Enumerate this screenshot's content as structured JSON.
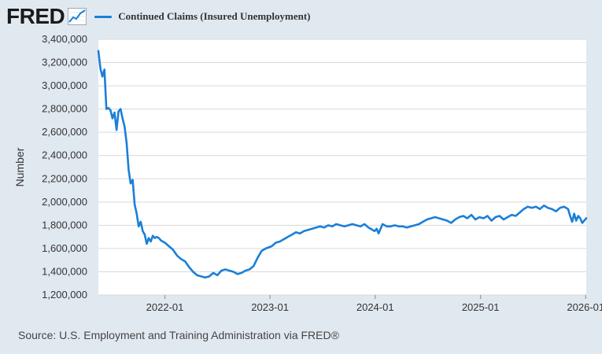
{
  "brand": {
    "name": "FRED"
  },
  "icons": {
    "logo_chart": "line-chart-icon"
  },
  "colors": {
    "series": "#1a7fd8",
    "background": "#e1e9f0",
    "plot_bg": "#ffffff",
    "grid": "#d9d9d9"
  },
  "source_text": "Source: U.S. Employment and Training Administration via FRED®",
  "chart_data": {
    "type": "line",
    "xlabel": "",
    "ylabel": "Number",
    "ylim": [
      1200000,
      3400000
    ],
    "yticks": [
      1200000,
      1400000,
      1600000,
      1800000,
      2000000,
      2200000,
      2400000,
      2600000,
      2800000,
      3000000,
      3200000,
      3400000
    ],
    "ytick_labels": [
      "1,200,000",
      "1,400,000",
      "1,600,000",
      "1,800,000",
      "2,000,000",
      "2,200,000",
      "2,400,000",
      "2,600,000",
      "2,800,000",
      "3,000,000",
      "3,200,000",
      "3,400,000"
    ],
    "xlim": [
      "2021-05-15",
      "2026-01-03"
    ],
    "xticks": [
      "2022-01-01",
      "2023-01-01",
      "2024-01-01",
      "2025-01-01",
      "2026-01-01"
    ],
    "xtick_labels": [
      "2022-01",
      "2023-01",
      "2024-01",
      "2025-01",
      "2026-01"
    ],
    "grid": true,
    "legend": "top-left",
    "series": [
      {
        "name": "Continued Claims (Insured Unemployment)",
        "color": "#1a7fd8",
        "points": [
          [
            "2021-05-15",
            3300000
          ],
          [
            "2021-05-22",
            3150000
          ],
          [
            "2021-05-29",
            3080000
          ],
          [
            "2021-06-05",
            3140000
          ],
          [
            "2021-06-12",
            2800000
          ],
          [
            "2021-06-19",
            2810000
          ],
          [
            "2021-06-26",
            2790000
          ],
          [
            "2021-07-03",
            2720000
          ],
          [
            "2021-07-10",
            2770000
          ],
          [
            "2021-07-17",
            2620000
          ],
          [
            "2021-07-24",
            2780000
          ],
          [
            "2021-07-31",
            2800000
          ],
          [
            "2021-08-07",
            2720000
          ],
          [
            "2021-08-14",
            2650000
          ],
          [
            "2021-08-21",
            2510000
          ],
          [
            "2021-08-28",
            2280000
          ],
          [
            "2021-09-04",
            2160000
          ],
          [
            "2021-09-11",
            2190000
          ],
          [
            "2021-09-18",
            1980000
          ],
          [
            "2021-09-25",
            1900000
          ],
          [
            "2021-10-02",
            1790000
          ],
          [
            "2021-10-09",
            1830000
          ],
          [
            "2021-10-16",
            1750000
          ],
          [
            "2021-10-23",
            1720000
          ],
          [
            "2021-10-30",
            1640000
          ],
          [
            "2021-11-06",
            1690000
          ],
          [
            "2021-11-13",
            1660000
          ],
          [
            "2021-11-20",
            1710000
          ],
          [
            "2021-11-27",
            1690000
          ],
          [
            "2021-12-04",
            1700000
          ],
          [
            "2021-12-11",
            1690000
          ],
          [
            "2021-12-18",
            1670000
          ],
          [
            "2022-01-01",
            1650000
          ],
          [
            "2022-01-15",
            1620000
          ],
          [
            "2022-01-29",
            1590000
          ],
          [
            "2022-02-12",
            1540000
          ],
          [
            "2022-02-26",
            1510000
          ],
          [
            "2022-03-12",
            1490000
          ],
          [
            "2022-03-26",
            1440000
          ],
          [
            "2022-04-09",
            1400000
          ],
          [
            "2022-04-23",
            1370000
          ],
          [
            "2022-05-07",
            1360000
          ],
          [
            "2022-05-21",
            1350000
          ],
          [
            "2022-06-04",
            1360000
          ],
          [
            "2022-06-18",
            1390000
          ],
          [
            "2022-07-02",
            1370000
          ],
          [
            "2022-07-16",
            1410000
          ],
          [
            "2022-07-30",
            1420000
          ],
          [
            "2022-08-13",
            1410000
          ],
          [
            "2022-08-27",
            1400000
          ],
          [
            "2022-09-10",
            1380000
          ],
          [
            "2022-09-24",
            1390000
          ],
          [
            "2022-10-08",
            1410000
          ],
          [
            "2022-10-22",
            1420000
          ],
          [
            "2022-11-05",
            1450000
          ],
          [
            "2022-11-19",
            1520000
          ],
          [
            "2022-12-03",
            1580000
          ],
          [
            "2022-12-17",
            1600000
          ],
          [
            "2023-01-07",
            1620000
          ],
          [
            "2023-01-21",
            1650000
          ],
          [
            "2023-02-04",
            1660000
          ],
          [
            "2023-02-18",
            1680000
          ],
          [
            "2023-03-04",
            1700000
          ],
          [
            "2023-03-18",
            1720000
          ],
          [
            "2023-04-01",
            1740000
          ],
          [
            "2023-04-15",
            1730000
          ],
          [
            "2023-04-29",
            1750000
          ],
          [
            "2023-05-13",
            1760000
          ],
          [
            "2023-05-27",
            1770000
          ],
          [
            "2023-06-10",
            1780000
          ],
          [
            "2023-06-24",
            1790000
          ],
          [
            "2023-07-08",
            1780000
          ],
          [
            "2023-07-22",
            1800000
          ],
          [
            "2023-08-05",
            1790000
          ],
          [
            "2023-08-19",
            1810000
          ],
          [
            "2023-09-02",
            1800000
          ],
          [
            "2023-09-16",
            1790000
          ],
          [
            "2023-09-30",
            1800000
          ],
          [
            "2023-10-14",
            1810000
          ],
          [
            "2023-10-28",
            1800000
          ],
          [
            "2023-11-11",
            1790000
          ],
          [
            "2023-11-25",
            1810000
          ],
          [
            "2023-12-09",
            1780000
          ],
          [
            "2023-12-23",
            1760000
          ],
          [
            "2023-12-30",
            1750000
          ],
          [
            "2024-01-06",
            1770000
          ],
          [
            "2024-01-13",
            1730000
          ],
          [
            "2024-01-27",
            1810000
          ],
          [
            "2024-02-10",
            1790000
          ],
          [
            "2024-02-24",
            1790000
          ],
          [
            "2024-03-09",
            1800000
          ],
          [
            "2024-03-23",
            1790000
          ],
          [
            "2024-04-06",
            1790000
          ],
          [
            "2024-04-20",
            1780000
          ],
          [
            "2024-05-04",
            1790000
          ],
          [
            "2024-05-18",
            1800000
          ],
          [
            "2024-06-01",
            1810000
          ],
          [
            "2024-06-15",
            1830000
          ],
          [
            "2024-06-29",
            1850000
          ],
          [
            "2024-07-13",
            1860000
          ],
          [
            "2024-07-27",
            1870000
          ],
          [
            "2024-08-10",
            1860000
          ],
          [
            "2024-08-24",
            1850000
          ],
          [
            "2024-09-07",
            1840000
          ],
          [
            "2024-09-21",
            1820000
          ],
          [
            "2024-10-05",
            1850000
          ],
          [
            "2024-10-19",
            1870000
          ],
          [
            "2024-11-02",
            1880000
          ],
          [
            "2024-11-16",
            1860000
          ],
          [
            "2024-11-30",
            1890000
          ],
          [
            "2024-12-14",
            1850000
          ],
          [
            "2024-12-28",
            1870000
          ],
          [
            "2025-01-11",
            1860000
          ],
          [
            "2025-01-25",
            1880000
          ],
          [
            "2025-02-08",
            1840000
          ],
          [
            "2025-02-22",
            1870000
          ],
          [
            "2025-03-08",
            1880000
          ],
          [
            "2025-03-22",
            1850000
          ],
          [
            "2025-04-05",
            1870000
          ],
          [
            "2025-04-19",
            1890000
          ],
          [
            "2025-05-03",
            1880000
          ],
          [
            "2025-05-17",
            1910000
          ],
          [
            "2025-05-31",
            1940000
          ],
          [
            "2025-06-14",
            1960000
          ],
          [
            "2025-06-28",
            1950000
          ],
          [
            "2025-07-12",
            1960000
          ],
          [
            "2025-07-26",
            1940000
          ],
          [
            "2025-08-09",
            1970000
          ],
          [
            "2025-08-23",
            1950000
          ],
          [
            "2025-09-06",
            1940000
          ],
          [
            "2025-09-20",
            1920000
          ],
          [
            "2025-10-04",
            1950000
          ],
          [
            "2025-10-18",
            1960000
          ],
          [
            "2025-11-01",
            1940000
          ],
          [
            "2025-11-08",
            1880000
          ],
          [
            "2025-11-15",
            1830000
          ],
          [
            "2025-11-22",
            1900000
          ],
          [
            "2025-11-29",
            1840000
          ],
          [
            "2025-12-06",
            1880000
          ],
          [
            "2025-12-13",
            1860000
          ],
          [
            "2025-12-20",
            1820000
          ],
          [
            "2025-12-27",
            1840000
          ],
          [
            "2026-01-03",
            1860000
          ]
        ]
      }
    ]
  }
}
